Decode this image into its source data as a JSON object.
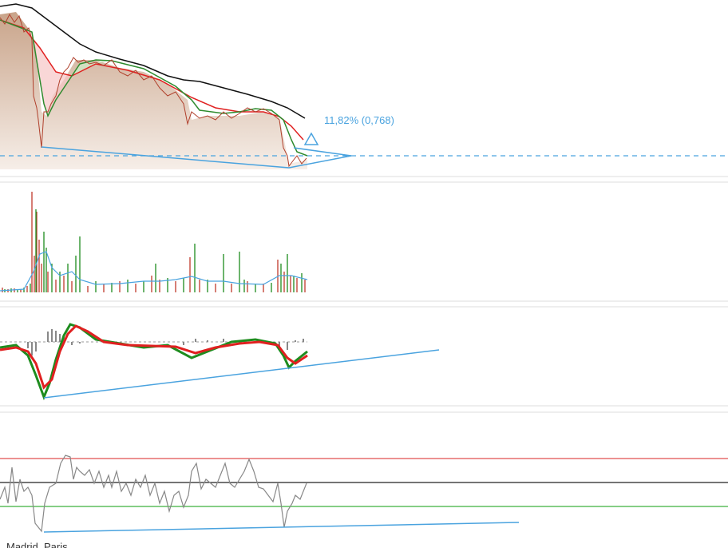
{
  "annotation": {
    "text": "11,82% (0,768)"
  },
  "footer": {
    "text": "Madrid, Paris"
  }
}
